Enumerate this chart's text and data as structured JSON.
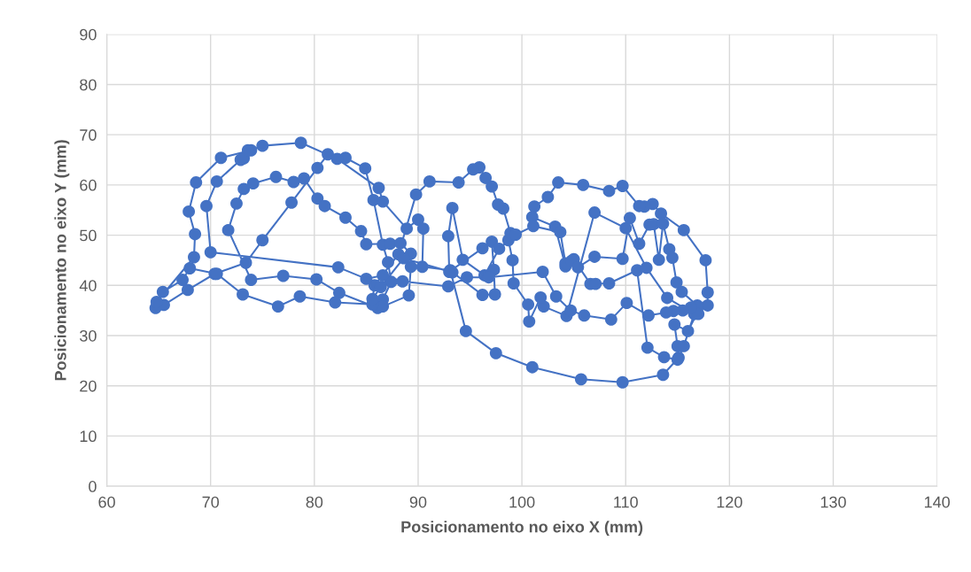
{
  "chart_data": {
    "type": "line",
    "xlabel": "Posicionamento no eixo X (mm)",
    "ylabel": "Posicionamento no eixo Y (mm)",
    "xlim": [
      60,
      140
    ],
    "xticks": [
      60,
      70,
      80,
      90,
      100,
      110,
      120,
      130,
      140
    ],
    "ylim": [
      0,
      90
    ],
    "yticks": [
      0,
      10,
      20,
      30,
      40,
      50,
      60,
      70,
      80,
      90
    ],
    "grid": true,
    "marker": "circle",
    "line_style": "solid",
    "series": [
      {
        "color": "#4472c4",
        "x": [
          64.7,
          65.5,
          67.8,
          70.4,
          73.4,
          75.0,
          77.8,
          80.3,
          81.3,
          83.0,
          84.9,
          85.7,
          86.6,
          87.1,
          87.4,
          86.6,
          86.1,
          82.4,
          80.2,
          77.0,
          73.9,
          71.7,
          72.5,
          73.2,
          74.1,
          76.3,
          78.0,
          79.0,
          80.3,
          81.0,
          83.0,
          84.5,
          85.0,
          87.3,
          88.3,
          89.3,
          89.3,
          89.1,
          86.6,
          85.6,
          82.0,
          78.6,
          76.5,
          73.1,
          70.6,
          68.0,
          67.3,
          65.4,
          64.8,
          68.4,
          68.5,
          67.9,
          68.6,
          71.0,
          73.9,
          75.0,
          78.7,
          82.2,
          86.2,
          86.6,
          88.9,
          90.0,
          90.5,
          90.4,
          93.1,
          94.6,
          97.5,
          101.0,
          105.7,
          109.7,
          113.6,
          115.1,
          115.0,
          114.7,
          116.0,
          116.9,
          117.9,
          117.9,
          117.7,
          115.6,
          113.4,
          112.6,
          111.8,
          111.3,
          109.7,
          108.4,
          105.9,
          103.5,
          102.5,
          101.2,
          101.0,
          103.2,
          104.2,
          105.0,
          106.6,
          107.1,
          108.4,
          111.1,
          112.1,
          113.7,
          115.0,
          115.6,
          116.6,
          114.0,
          112.0,
          110.0,
          107.0,
          104.3,
          102.1,
          101.8,
          100.7,
          100.6,
          99.2,
          99.1,
          98.7,
          98.9,
          98.2,
          97.7,
          97.1,
          96.5,
          95.9,
          95.3,
          93.9,
          91.1,
          89.8,
          88.1,
          85.8,
          85.6,
          86.4,
          88.6,
          93.3,
          96.2,
          97.4,
          97.3,
          97.1,
          96.2,
          93.0,
          92.9,
          93.3,
          94.3,
          96.4,
          97.8,
          99.4,
          101.1,
          103.7,
          104.2,
          104.8,
          105.4,
          107.0,
          109.7,
          110.4,
          111.3,
          112.3,
          112.7,
          113.2,
          113.6,
          114.2,
          114.5,
          114.9,
          115.4,
          116.9,
          117.0,
          116.3,
          115.5,
          114.6,
          113.9,
          112.2,
          110.1,
          108.6,
          106.0,
          104.7,
          103.3,
          102.0,
          96.8,
          94.7,
          92.9,
          88.5,
          86.6,
          85.0,
          82.3,
          70.0,
          69.6,
          70.6,
          72.9,
          73.2,
          73.6
        ],
        "values": [
          35.5,
          36.1,
          39.1,
          42.3,
          44.5,
          49.0,
          56.5,
          63.4,
          66.1,
          65.4,
          63.3,
          57.0,
          48.1,
          44.6,
          40.7,
          37.2,
          35.5,
          38.5,
          41.2,
          41.9,
          41.1,
          51.0,
          56.3,
          59.2,
          60.3,
          61.6,
          60.6,
          61.3,
          57.3,
          55.8,
          53.5,
          50.8,
          48.2,
          48.3,
          48.4,
          46.3,
          43.7,
          38.0,
          35.8,
          36.2,
          36.6,
          37.8,
          35.8,
          38.2,
          42.3,
          43.4,
          41.1,
          38.7,
          36.7,
          45.6,
          50.2,
          54.7,
          60.5,
          65.4,
          66.9,
          67.8,
          68.4,
          65.2,
          59.4,
          56.7,
          51.3,
          53.1,
          51.3,
          43.7,
          43.0,
          30.9,
          26.5,
          23.7,
          21.3,
          20.7,
          22.2,
          25.6,
          27.9,
          32.2,
          30.9,
          34.5,
          36.0,
          38.6,
          45.0,
          51.0,
          54.3,
          56.2,
          55.7,
          55.8,
          59.8,
          58.8,
          60.0,
          60.5,
          57.6,
          55.7,
          53.6,
          51.7,
          43.8,
          45.2,
          40.3,
          40.3,
          40.4,
          43.0,
          27.6,
          25.7,
          25.2,
          27.9,
          34.3,
          37.5,
          43.5,
          51.4,
          54.5,
          33.9,
          35.8,
          37.6,
          32.8,
          36.2,
          40.4,
          45.0,
          49.0,
          50.4,
          55.3,
          56.1,
          59.7,
          61.4,
          63.5,
          63.1,
          60.5,
          60.7,
          58.1,
          46.2,
          40.0,
          37.3,
          39.7,
          45.4,
          42.6,
          38.1,
          38.2,
          43.1,
          48.7,
          47.4,
          42.7,
          49.8,
          55.4,
          45.1,
          42.0,
          47.3,
          50.1,
          51.8,
          50.6,
          44.4,
          44.9,
          43.6,
          45.7,
          45.3,
          53.4,
          48.3,
          52.1,
          52.2,
          45.1,
          52.3,
          47.2,
          45.5,
          40.6,
          38.7,
          36.0,
          34.3,
          35.6,
          35.0,
          34.9,
          34.6,
          34.0,
          36.5,
          33.2,
          34.0,
          35.0,
          37.8,
          42.7,
          41.6,
          41.6,
          39.8,
          40.8,
          42.0,
          41.3,
          43.6,
          46.6,
          55.8,
          60.7,
          65.0,
          65.3,
          66.9
        ]
      }
    ]
  }
}
